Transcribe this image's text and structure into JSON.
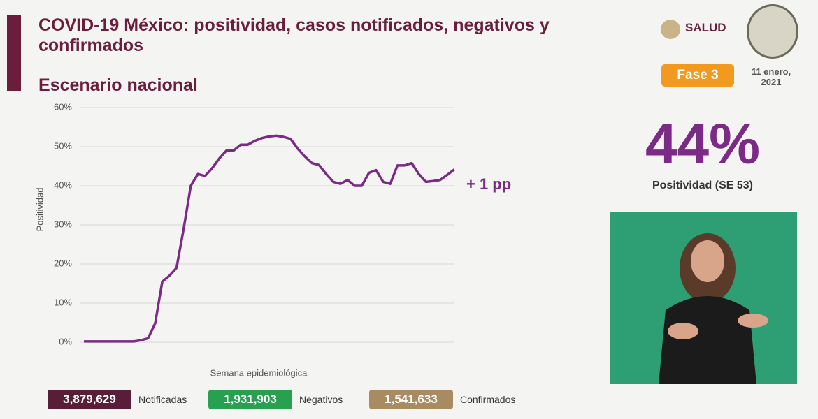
{
  "chart_data": {
    "type": "line",
    "title": "COVID-19 México: positividad, casos notificados, negativos y confirmados",
    "subtitle": "Escenario nacional",
    "y_label": "Positividad",
    "x_label": "Semana epidemiológica",
    "annotation": "+ 1 pp",
    "categories": [
      null,
      null,
      null,
      null,
      null,
      null,
      null,
      null,
      null,
      null,
      null,
      null,
      null,
      null,
      null,
      null,
      null,
      null,
      null,
      null,
      null,
      null,
      null,
      null,
      null,
      null,
      null,
      null,
      null,
      null,
      null,
      null,
      null,
      null,
      null,
      null,
      null,
      null,
      null,
      null,
      null,
      null,
      null,
      null,
      null,
      null,
      null,
      null,
      null,
      null,
      null,
      null,
      null
    ],
    "series": [
      {
        "name": "Positividad",
        "color": "#7b2a86",
        "values": [
          0.2,
          0.2,
          0.2,
          0.2,
          0.2,
          0.2,
          0.2,
          0.2,
          0.5,
          1,
          4.8,
          15.5,
          17,
          19,
          29,
          40,
          43,
          42.5,
          44.5,
          47,
          49,
          49,
          50.5,
          50.5,
          51.5,
          52.2,
          52.6,
          52.8,
          52.5,
          52,
          49.5,
          47.5,
          45.8,
          45.3,
          43,
          41,
          40.5,
          41.5,
          40,
          40,
          43.3,
          44,
          41,
          40.5,
          45.2,
          45.2,
          45.8,
          43,
          41,
          41.2,
          41.5,
          42.8,
          44.2
        ]
      }
    ],
    "ylim": [
      0,
      60
    ],
    "yticks": [
      {
        "value": 0,
        "label": "0%"
      },
      {
        "value": 10,
        "label": "10%"
      },
      {
        "value": 20,
        "label": "20%"
      },
      {
        "value": 30,
        "label": "30%"
      },
      {
        "value": 40,
        "label": "40%"
      },
      {
        "value": 50,
        "label": "50%"
      },
      {
        "value": 60,
        "label": "60%"
      }
    ],
    "grid": true
  },
  "header": {
    "logo": "SALUD",
    "phase": "Fase 3",
    "date": "11 enero, 2021"
  },
  "panel": {
    "big_value": "44%",
    "big_label": "Positividad (SE 53)"
  },
  "totals": [
    {
      "value": "3,879,629",
      "label": "Notificadas",
      "color": "#5a1d37"
    },
    {
      "value": "1,931,903",
      "label": "Negativos",
      "color": "#27a04f"
    },
    {
      "value": "1,541,633",
      "label": "Confirmados",
      "color": "#a98b62"
    }
  ]
}
